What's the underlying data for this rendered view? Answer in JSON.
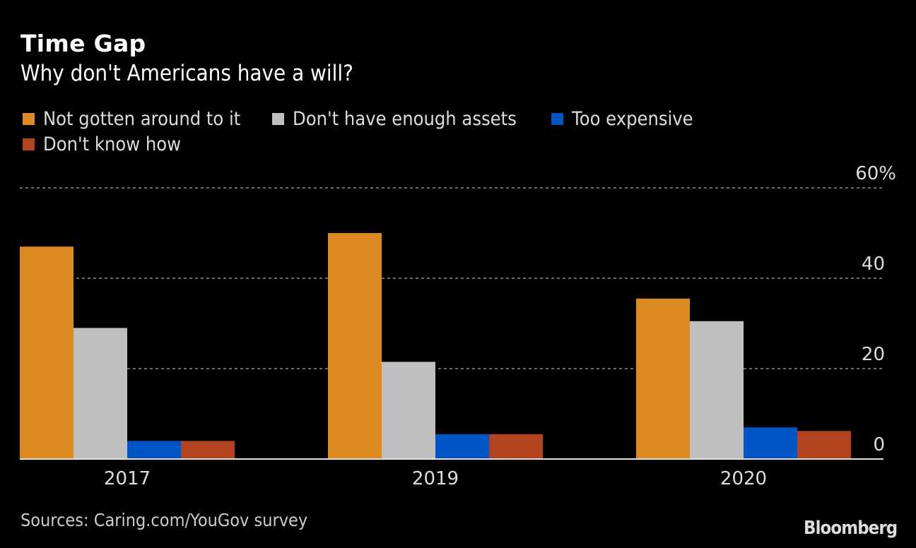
{
  "title": "Time Gap",
  "subtitle": "Why don't Americans have a will?",
  "source": "Sources: Caring.com/YouGov survey",
  "logo": "Bloomberg",
  "chart_data": {
    "type": "bar",
    "title": "Time Gap",
    "subtitle": "Why don't Americans have a will?",
    "xlabel": "",
    "ylabel": "",
    "categories": [
      "2017",
      "2019",
      "2020"
    ],
    "series": [
      {
        "name": "Not gotten around to it",
        "color": "#db8a22",
        "values": [
          47,
          50,
          35.5
        ]
      },
      {
        "name": "Don't have enough assets",
        "color": "#bfbfbf",
        "values": [
          29,
          21.5,
          30.5
        ]
      },
      {
        "name": "Too expensive",
        "color": "#0055c4",
        "values": [
          4,
          5.5,
          7
        ]
      },
      {
        "name": "Don't know how",
        "color": "#b3421e",
        "values": [
          4,
          5.5,
          6.2
        ]
      }
    ],
    "ylim": [
      0,
      60
    ],
    "yticks": [
      0,
      20,
      40,
      60
    ],
    "ytick_labels": [
      "0",
      "20",
      "40",
      "60%"
    ],
    "grid": true,
    "grid_style": "dotted",
    "legend_position": "top-left",
    "yaxis_position": "right"
  }
}
